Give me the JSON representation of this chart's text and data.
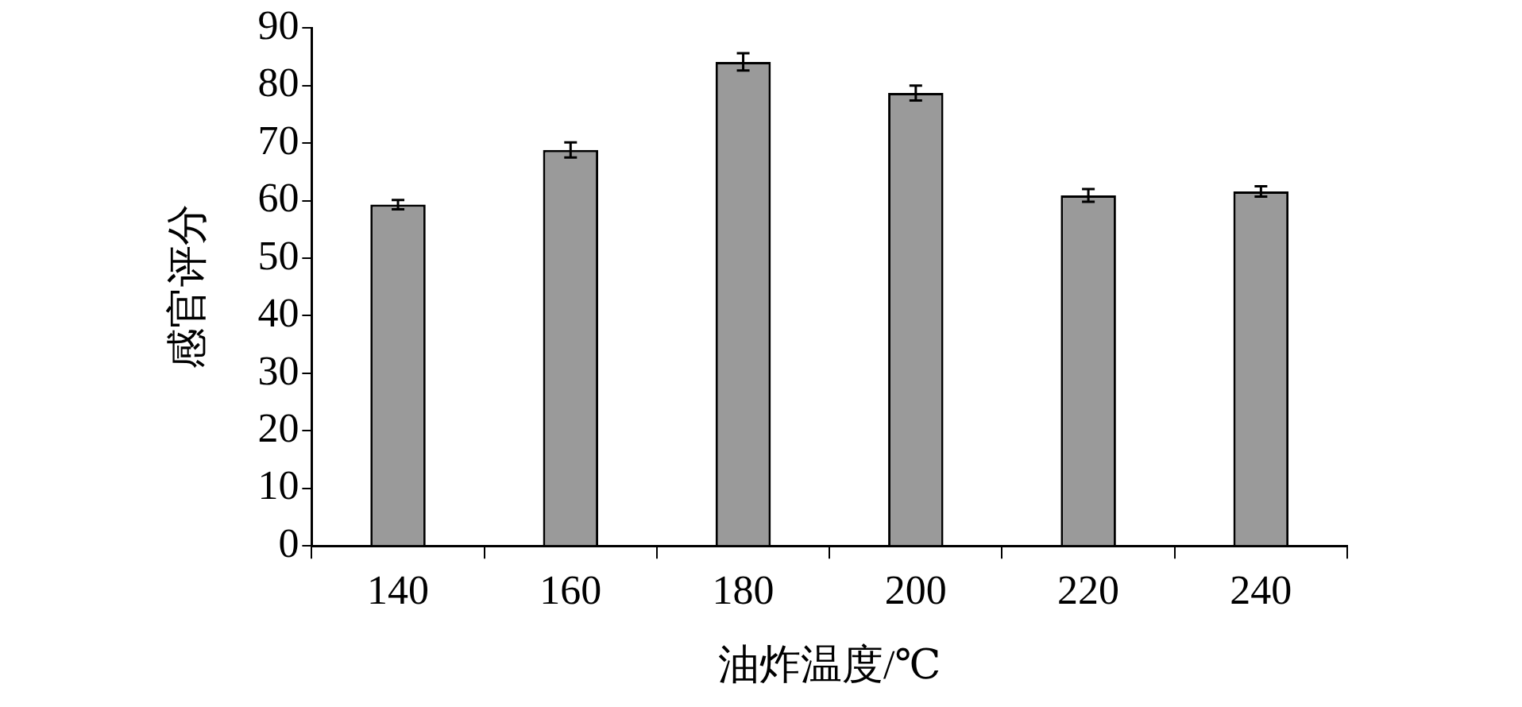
{
  "chart_data": {
    "type": "bar",
    "xlabel": "油炸温度/℃",
    "ylabel": "感官评分",
    "categories": [
      "140",
      "160",
      "180",
      "200",
      "220",
      "240"
    ],
    "series": [
      {
        "color": "#9a9a9a",
        "values": [
          59.3,
          68.8,
          84.1,
          78.7,
          60.9,
          61.6
        ],
        "errors": [
          0.8,
          1.3,
          1.5,
          1.3,
          1.1,
          0.9
        ]
      }
    ],
    "ylim": [
      0,
      90
    ],
    "yticks": [
      0,
      10,
      20,
      30,
      40,
      50,
      60,
      70,
      80,
      90
    ],
    "grid": false,
    "legend": false
  }
}
